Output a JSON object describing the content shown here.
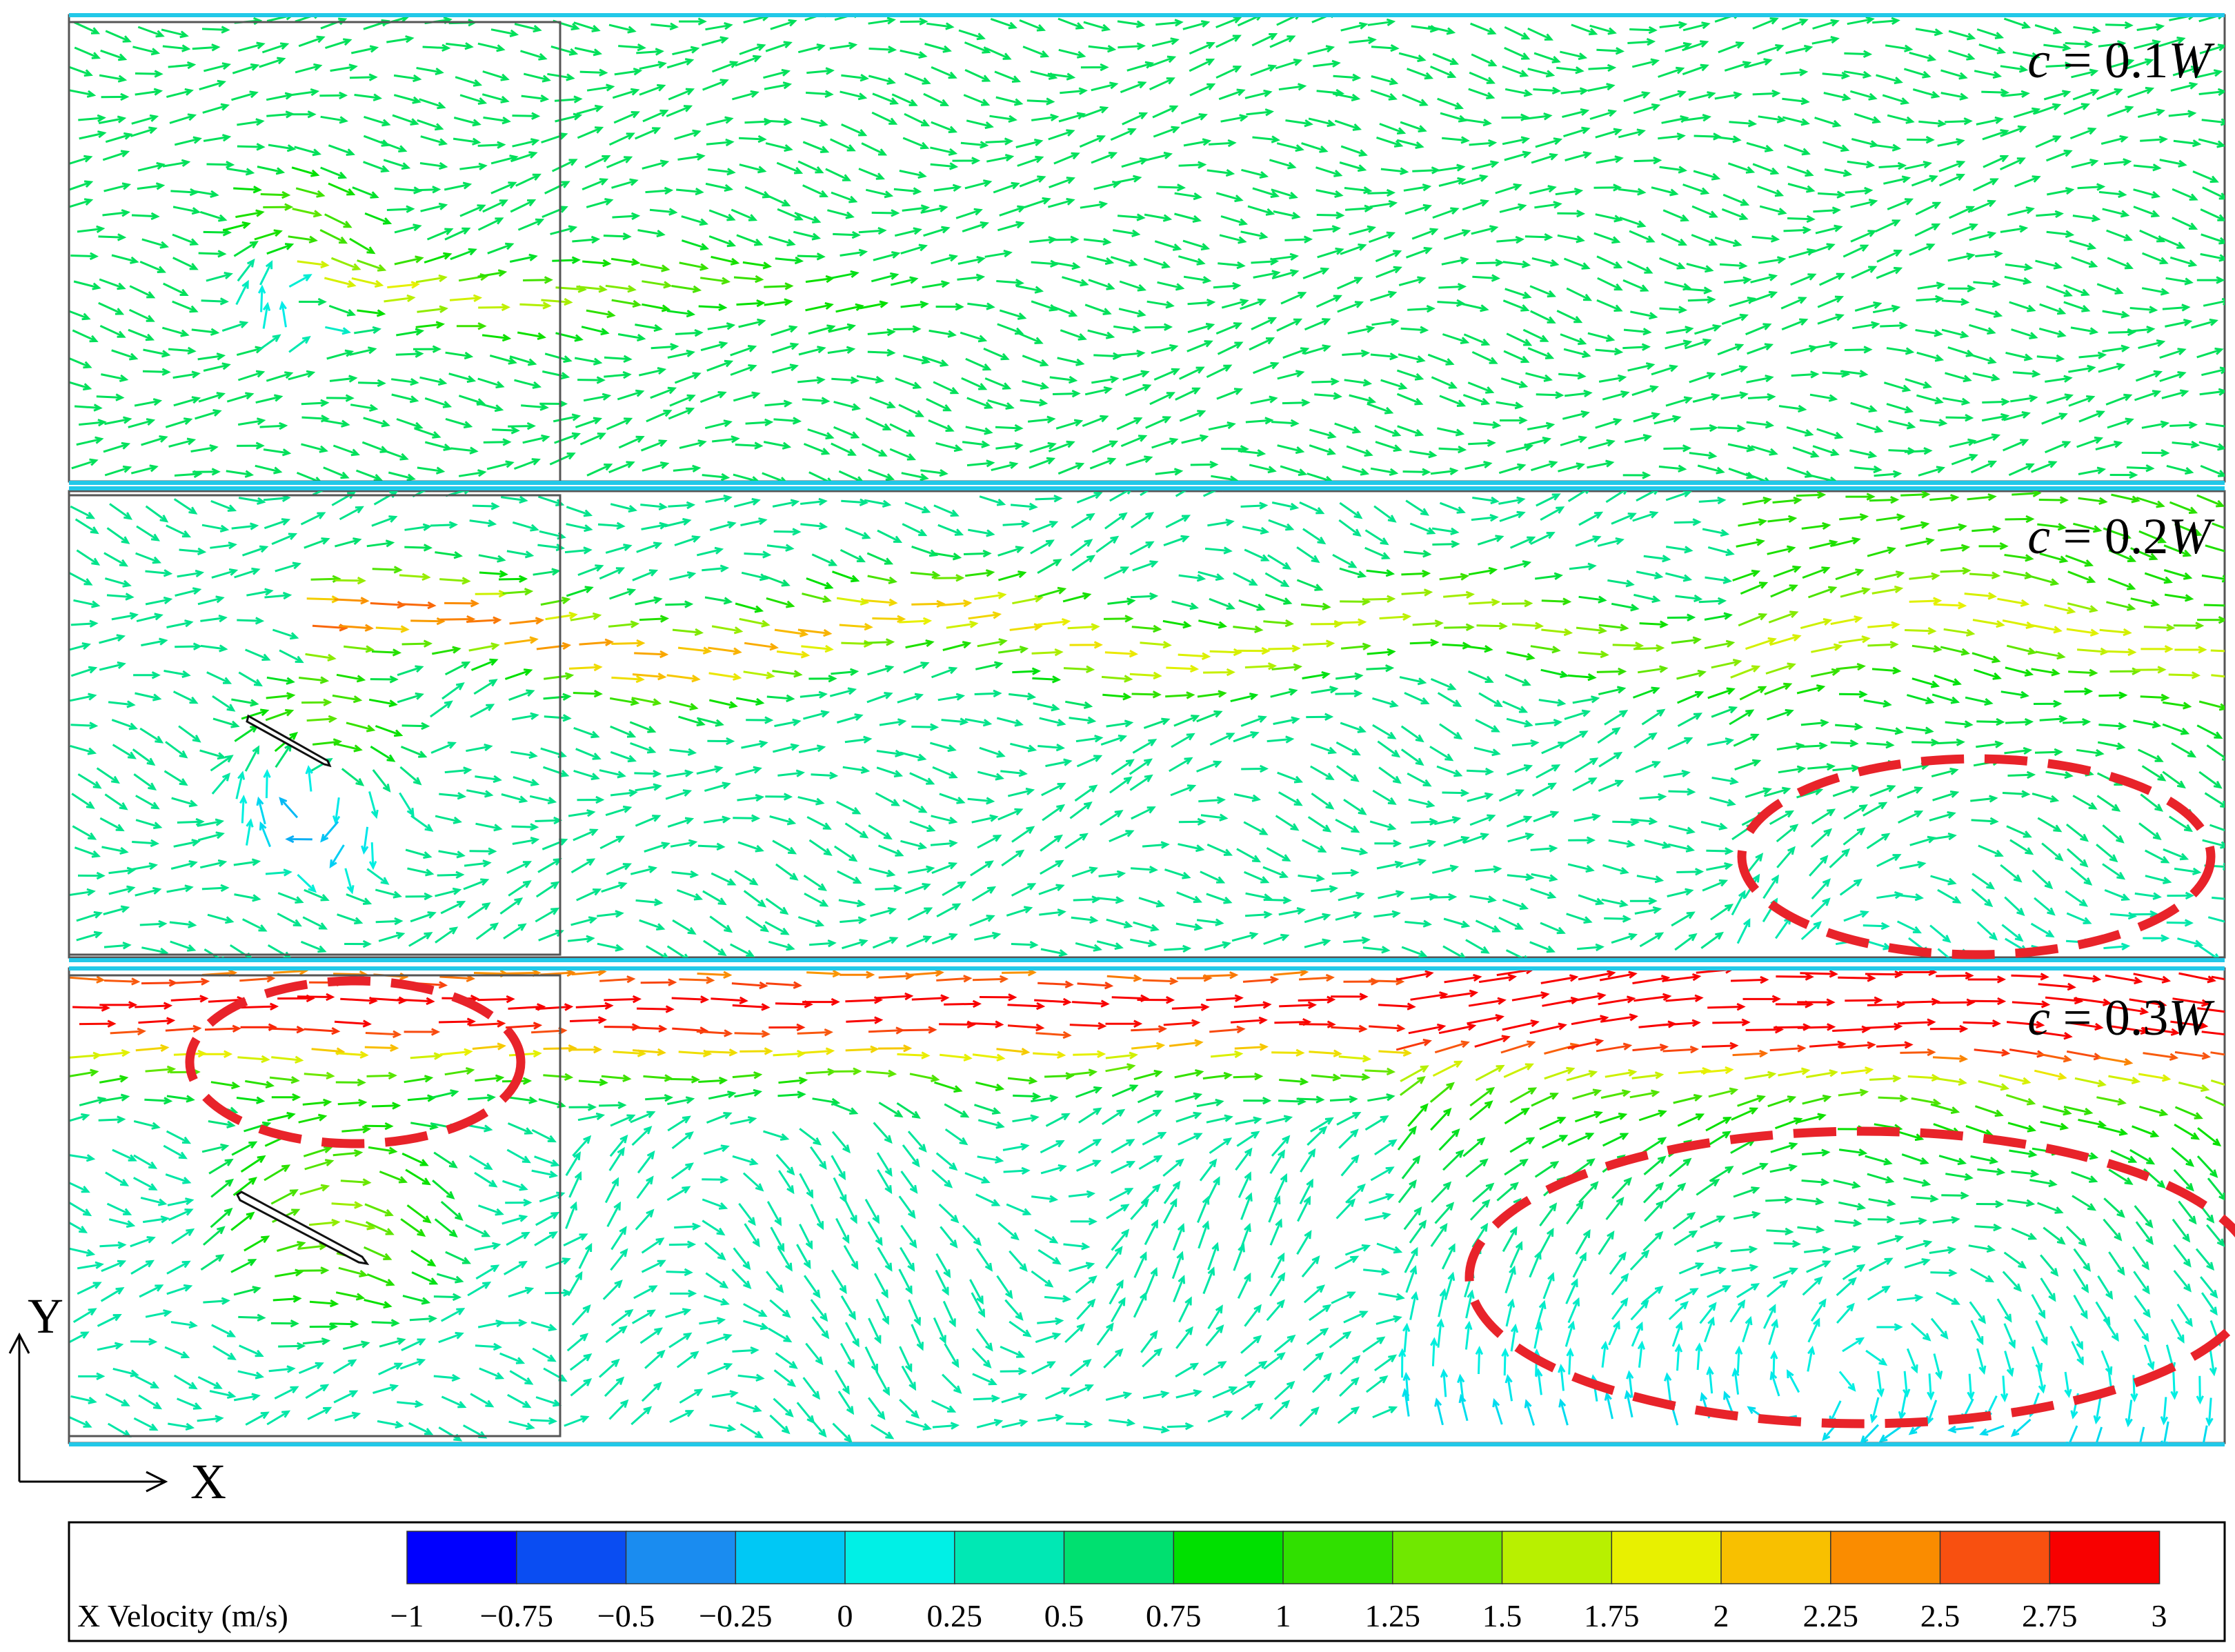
{
  "panels": [
    {
      "id": "top",
      "label_prefix": "c",
      "label_mid": " = 0.1",
      "label_suffix": "W"
    },
    {
      "id": "mid",
      "label_prefix": "c",
      "label_mid": " = 0.2",
      "label_suffix": "W"
    },
    {
      "id": "bot",
      "label_prefix": "c",
      "label_mid": " = 0.3",
      "label_suffix": "W"
    }
  ],
  "axes": {
    "x_label": "X",
    "y_label": "Y"
  },
  "colorbar": {
    "title": "X Velocity (m/s)",
    "ticks": [
      "−1",
      "−0.75",
      "−0.5",
      "−0.25",
      "0",
      "0.25",
      "0.5",
      "0.75",
      "1",
      "1.25",
      "1.5",
      "1.75",
      "2",
      "2.25",
      "2.5",
      "2.75",
      "3"
    ],
    "min": -1,
    "max": 3,
    "colors": [
      "#0000ff",
      "#0a4df2",
      "#1a8cf0",
      "#00c8f5",
      "#00f0e6",
      "#00e8b4",
      "#00e070",
      "#00e000",
      "#30e000",
      "#70e800",
      "#b8f000",
      "#e8f000",
      "#f8c000",
      "#fa8c00",
      "#f85010",
      "#f80000"
    ]
  },
  "colors": {
    "highlight": "#e8232a",
    "frame": "#555555"
  }
}
